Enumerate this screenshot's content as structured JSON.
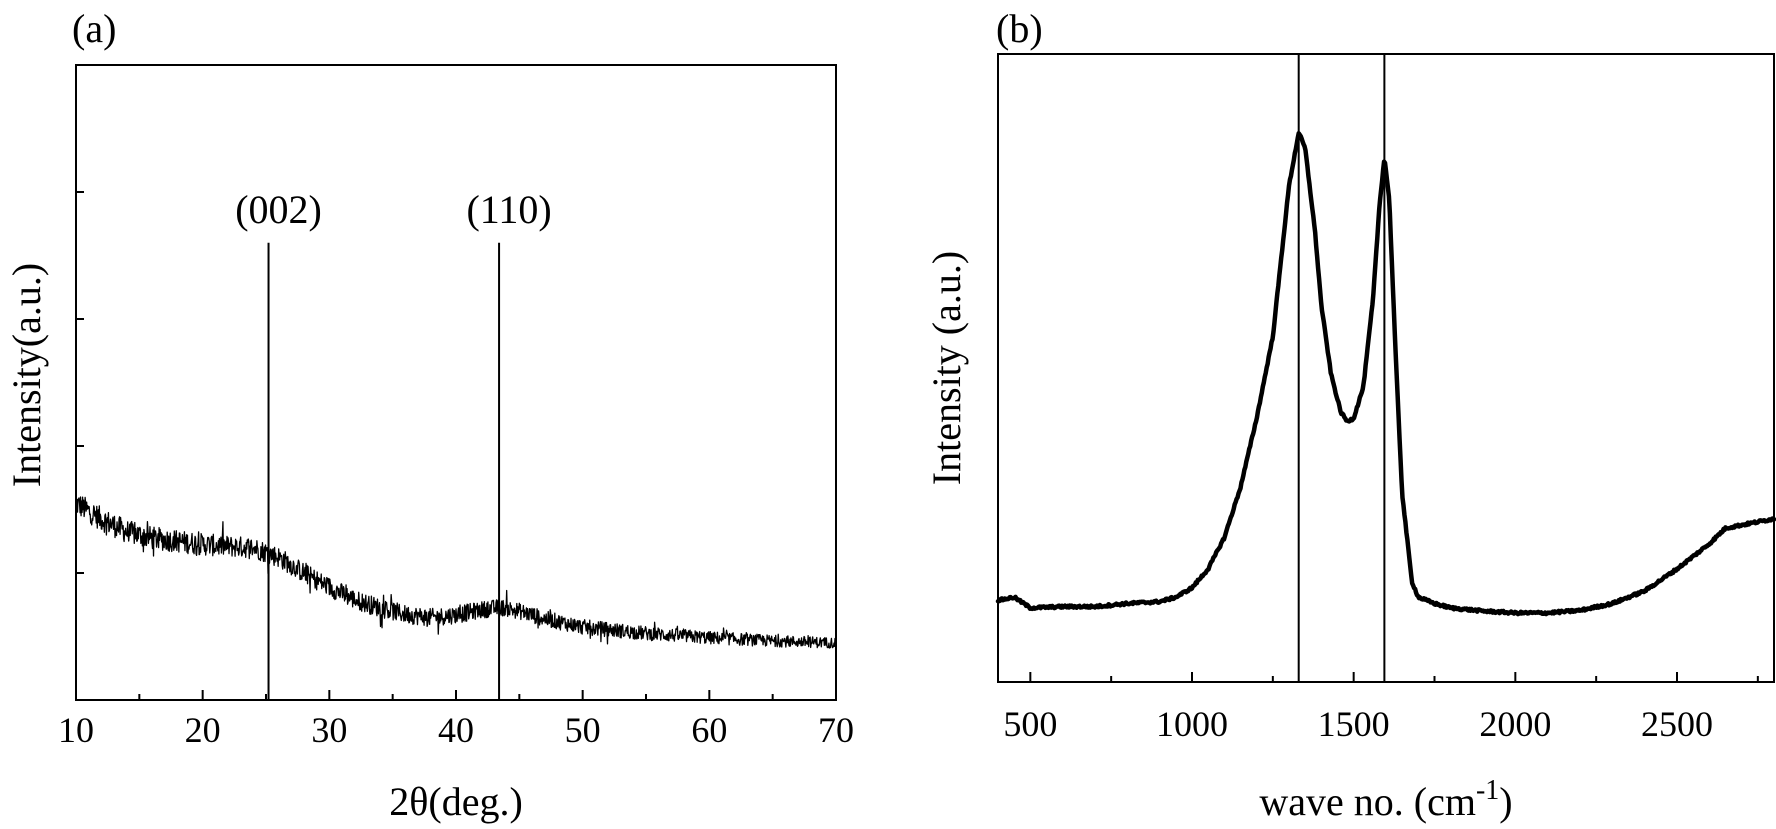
{
  "chart_data": [
    {
      "panel": "(a)",
      "type": "line",
      "xlabel": "2θ(deg.)",
      "ylabel": "Intensity(a.u.)",
      "xlim": [
        10,
        70
      ],
      "ylim": [
        0,
        1
      ],
      "y_ticks": [
        0.2,
        0.4,
        0.6,
        0.8,
        1.0
      ],
      "x_ticks": [
        10,
        20,
        30,
        40,
        50,
        60,
        70
      ],
      "x_tick_labels": [
        "10",
        "20",
        "30",
        "40",
        "50",
        "60",
        "70"
      ],
      "grid": false,
      "noise_amplitude": 0.012,
      "series": [
        {
          "x": [
            10,
            12,
            14,
            16,
            18,
            20,
            22,
            24,
            26,
            28,
            30,
            32,
            34,
            36,
            38,
            40,
            42,
            43.5,
            45,
            47,
            50,
            55,
            60,
            65,
            70
          ],
          "y": [
            0.31,
            0.285,
            0.265,
            0.255,
            0.25,
            0.245,
            0.242,
            0.24,
            0.225,
            0.2,
            0.178,
            0.158,
            0.145,
            0.135,
            0.13,
            0.134,
            0.142,
            0.146,
            0.14,
            0.128,
            0.115,
            0.105,
            0.098,
            0.093,
            0.09
          ]
        }
      ],
      "annotations": [
        {
          "text": "(002)",
          "x": 25.2,
          "line_top_y": 0.72
        },
        {
          "text": "(110)",
          "x": 43.4,
          "line_top_y": 0.72
        }
      ]
    },
    {
      "panel": "(b)",
      "type": "line",
      "xlabel": "wave no. (cm",
      "xlabel_sup": "-1",
      "xlabel_end": ")",
      "ylabel": "Intensity (a.u.)",
      "xlim": [
        400,
        2800
      ],
      "ylim": [
        0,
        1
      ],
      "x_major_ticks": [
        500,
        1000,
        1500,
        2000,
        2500
      ],
      "x_tick_labels": [
        "500",
        "1000",
        "1500",
        "2000",
        "2500"
      ],
      "grid": false,
      "series": [
        {
          "x": [
            400,
            450,
            500,
            600,
            700,
            800,
            900,
            950,
            1000,
            1050,
            1100,
            1150,
            1200,
            1250,
            1300,
            1330,
            1350,
            1380,
            1400,
            1430,
            1460,
            1480,
            1500,
            1530,
            1560,
            1580,
            1595,
            1610,
            1630,
            1650,
            1680,
            1700,
            1750,
            1800,
            1900,
            2000,
            2100,
            2200,
            2300,
            2400,
            2500,
            2600,
            2650,
            2700,
            2750,
            2800
          ],
          "y": [
            0.13,
            0.135,
            0.118,
            0.12,
            0.12,
            0.125,
            0.128,
            0.135,
            0.15,
            0.18,
            0.23,
            0.31,
            0.42,
            0.55,
            0.79,
            0.875,
            0.85,
            0.72,
            0.6,
            0.49,
            0.43,
            0.415,
            0.42,
            0.47,
            0.61,
            0.76,
            0.835,
            0.77,
            0.52,
            0.3,
            0.16,
            0.135,
            0.125,
            0.118,
            0.113,
            0.11,
            0.11,
            0.114,
            0.125,
            0.145,
            0.18,
            0.22,
            0.245,
            0.25,
            0.255,
            0.26
          ]
        }
      ],
      "reference_lines": [
        1330,
        1595
      ]
    }
  ]
}
